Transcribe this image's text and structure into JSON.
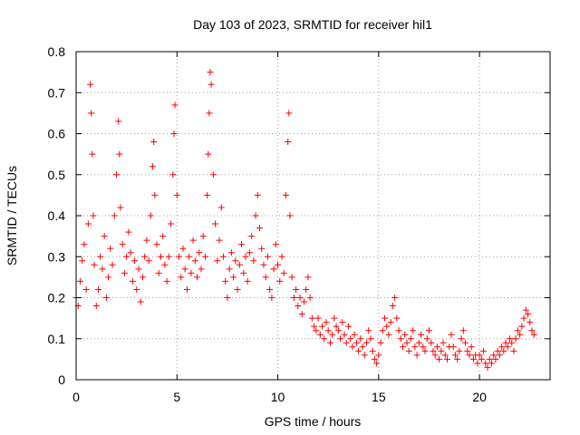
{
  "chart_data": {
    "type": "scatter",
    "title": "Day 103 of 2023, SRMTID for receiver hil1",
    "xlabel": "GPS time / hours",
    "ylabel": "SRMTID / TECUs",
    "xlim": [
      0,
      23.5
    ],
    "ylim": [
      0,
      0.8
    ],
    "xticks": [
      0,
      5,
      10,
      15,
      20
    ],
    "xtick_labels": [
      "0",
      "5",
      "10",
      "15",
      "20"
    ],
    "yticks": [
      0,
      0.1,
      0.2,
      0.3,
      0.4,
      0.5,
      0.6,
      0.7,
      0.8
    ],
    "ytick_labels": [
      "0",
      "0.1",
      "0.2",
      "0.3",
      "0.4",
      "0.5",
      "0.6",
      "0.7",
      "0.8"
    ],
    "grid": true,
    "marker": "+",
    "color": "#ff0000",
    "series": [
      {
        "name": "SRMTID",
        "points": [
          [
            0.0,
            0.2
          ],
          [
            0.1,
            0.18
          ],
          [
            0.2,
            0.24
          ],
          [
            0.3,
            0.29
          ],
          [
            0.4,
            0.33
          ],
          [
            0.5,
            0.22
          ],
          [
            0.6,
            0.38
          ],
          [
            0.7,
            0.72
          ],
          [
            0.75,
            0.65
          ],
          [
            0.8,
            0.55
          ],
          [
            0.85,
            0.4
          ],
          [
            0.9,
            0.28
          ],
          [
            1.0,
            0.18
          ],
          [
            1.1,
            0.22
          ],
          [
            1.2,
            0.3
          ],
          [
            1.3,
            0.27
          ],
          [
            1.4,
            0.35
          ],
          [
            1.5,
            0.2
          ],
          [
            1.6,
            0.25
          ],
          [
            1.7,
            0.32
          ],
          [
            1.8,
            0.28
          ],
          [
            1.9,
            0.4
          ],
          [
            2.0,
            0.5
          ],
          [
            2.1,
            0.63
          ],
          [
            2.15,
            0.55
          ],
          [
            2.2,
            0.42
          ],
          [
            2.3,
            0.33
          ],
          [
            2.4,
            0.26
          ],
          [
            2.5,
            0.3
          ],
          [
            2.6,
            0.36
          ],
          [
            2.7,
            0.31
          ],
          [
            2.8,
            0.24
          ],
          [
            2.9,
            0.29
          ],
          [
            3.0,
            0.22
          ],
          [
            3.1,
            0.27
          ],
          [
            3.2,
            0.19
          ],
          [
            3.3,
            0.25
          ],
          [
            3.4,
            0.3
          ],
          [
            3.5,
            0.34
          ],
          [
            3.6,
            0.29
          ],
          [
            3.7,
            0.4
          ],
          [
            3.8,
            0.52
          ],
          [
            3.85,
            0.58
          ],
          [
            3.9,
            0.45
          ],
          [
            4.0,
            0.33
          ],
          [
            4.1,
            0.26
          ],
          [
            4.2,
            0.3
          ],
          [
            4.3,
            0.35
          ],
          [
            4.4,
            0.28
          ],
          [
            4.5,
            0.24
          ],
          [
            4.6,
            0.3
          ],
          [
            4.7,
            0.38
          ],
          [
            4.8,
            0.5
          ],
          [
            4.85,
            0.6
          ],
          [
            4.9,
            0.67
          ],
          [
            5.0,
            0.45
          ],
          [
            5.1,
            0.3
          ],
          [
            5.2,
            0.25
          ],
          [
            5.3,
            0.32
          ],
          [
            5.4,
            0.27
          ],
          [
            5.5,
            0.22
          ],
          [
            5.6,
            0.3
          ],
          [
            5.7,
            0.26
          ],
          [
            5.8,
            0.34
          ],
          [
            5.9,
            0.29
          ],
          [
            6.0,
            0.25
          ],
          [
            6.1,
            0.31
          ],
          [
            6.2,
            0.27
          ],
          [
            6.3,
            0.35
          ],
          [
            6.4,
            0.3
          ],
          [
            6.5,
            0.45
          ],
          [
            6.55,
            0.55
          ],
          [
            6.6,
            0.65
          ],
          [
            6.65,
            0.75
          ],
          [
            6.7,
            0.72
          ],
          [
            6.8,
            0.5
          ],
          [
            6.9,
            0.38
          ],
          [
            7.0,
            0.29
          ],
          [
            7.1,
            0.34
          ],
          [
            7.2,
            0.42
          ],
          [
            7.3,
            0.3
          ],
          [
            7.4,
            0.24
          ],
          [
            7.5,
            0.2
          ],
          [
            7.6,
            0.27
          ],
          [
            7.7,
            0.31
          ],
          [
            7.8,
            0.25
          ],
          [
            7.9,
            0.29
          ],
          [
            8.0,
            0.22
          ],
          [
            8.1,
            0.28
          ],
          [
            8.2,
            0.33
          ],
          [
            8.3,
            0.26
          ],
          [
            8.4,
            0.3
          ],
          [
            8.5,
            0.24
          ],
          [
            8.6,
            0.31
          ],
          [
            8.7,
            0.35
          ],
          [
            8.8,
            0.29
          ],
          [
            8.9,
            0.4
          ],
          [
            9.0,
            0.45
          ],
          [
            9.1,
            0.37
          ],
          [
            9.2,
            0.32
          ],
          [
            9.3,
            0.28
          ],
          [
            9.4,
            0.25
          ],
          [
            9.5,
            0.3
          ],
          [
            9.6,
            0.22
          ],
          [
            9.7,
            0.2
          ],
          [
            9.8,
            0.27
          ],
          [
            9.9,
            0.33
          ],
          [
            10.0,
            0.28
          ],
          [
            10.1,
            0.24
          ],
          [
            10.2,
            0.3
          ],
          [
            10.3,
            0.26
          ],
          [
            10.4,
            0.45
          ],
          [
            10.5,
            0.58
          ],
          [
            10.55,
            0.65
          ],
          [
            10.6,
            0.4
          ],
          [
            10.7,
            0.25
          ],
          [
            10.8,
            0.2
          ],
          [
            10.9,
            0.22
          ],
          [
            11.0,
            0.18
          ],
          [
            11.1,
            0.2
          ],
          [
            11.2,
            0.16
          ],
          [
            11.3,
            0.19
          ],
          [
            11.4,
            0.22
          ],
          [
            11.5,
            0.25
          ],
          [
            11.6,
            0.2
          ],
          [
            11.7,
            0.15
          ],
          [
            11.8,
            0.13
          ],
          [
            11.9,
            0.12
          ],
          [
            12.0,
            0.15
          ],
          [
            12.1,
            0.11
          ],
          [
            12.2,
            0.13
          ],
          [
            12.3,
            0.1
          ],
          [
            12.4,
            0.14
          ],
          [
            12.5,
            0.12
          ],
          [
            12.6,
            0.09
          ],
          [
            12.7,
            0.11
          ],
          [
            12.8,
            0.15
          ],
          [
            12.9,
            0.13
          ],
          [
            13.0,
            0.12
          ],
          [
            13.1,
            0.1
          ],
          [
            13.2,
            0.14
          ],
          [
            13.3,
            0.11
          ],
          [
            13.4,
            0.09
          ],
          [
            13.5,
            0.13
          ],
          [
            13.6,
            0.1
          ],
          [
            13.7,
            0.08
          ],
          [
            13.8,
            0.11
          ],
          [
            13.9,
            0.09
          ],
          [
            14.0,
            0.07
          ],
          [
            14.1,
            0.1
          ],
          [
            14.2,
            0.08
          ],
          [
            14.3,
            0.06
          ],
          [
            14.4,
            0.09
          ],
          [
            14.5,
            0.12
          ],
          [
            14.6,
            0.1
          ],
          [
            14.7,
            0.07
          ],
          [
            14.8,
            0.05
          ],
          [
            14.9,
            0.04
          ],
          [
            15.0,
            0.06
          ],
          [
            15.1,
            0.09
          ],
          [
            15.2,
            0.12
          ],
          [
            15.3,
            0.15
          ],
          [
            15.4,
            0.13
          ],
          [
            15.5,
            0.11
          ],
          [
            15.6,
            0.14
          ],
          [
            15.7,
            0.18
          ],
          [
            15.8,
            0.2
          ],
          [
            15.9,
            0.15
          ],
          [
            16.0,
            0.12
          ],
          [
            16.1,
            0.1
          ],
          [
            16.2,
            0.08
          ],
          [
            16.3,
            0.11
          ],
          [
            16.4,
            0.09
          ],
          [
            16.5,
            0.07
          ],
          [
            16.6,
            0.1
          ],
          [
            16.7,
            0.12
          ],
          [
            16.8,
            0.08
          ],
          [
            16.9,
            0.06
          ],
          [
            17.0,
            0.09
          ],
          [
            17.1,
            0.11
          ],
          [
            17.2,
            0.08
          ],
          [
            17.3,
            0.07
          ],
          [
            17.4,
            0.1
          ],
          [
            17.5,
            0.12
          ],
          [
            17.6,
            0.09
          ],
          [
            17.7,
            0.07
          ],
          [
            17.8,
            0.06
          ],
          [
            17.9,
            0.08
          ],
          [
            18.0,
            0.05
          ],
          [
            18.1,
            0.07
          ],
          [
            18.2,
            0.09
          ],
          [
            18.3,
            0.06
          ],
          [
            18.4,
            0.05
          ],
          [
            18.5,
            0.08
          ],
          [
            18.6,
            0.11
          ],
          [
            18.7,
            0.08
          ],
          [
            18.8,
            0.06
          ],
          [
            18.9,
            0.05
          ],
          [
            19.0,
            0.07
          ],
          [
            19.1,
            0.1
          ],
          [
            19.2,
            0.12
          ],
          [
            19.3,
            0.09
          ],
          [
            19.4,
            0.07
          ],
          [
            19.5,
            0.06
          ],
          [
            19.6,
            0.08
          ],
          [
            19.7,
            0.05
          ],
          [
            19.8,
            0.06
          ],
          [
            19.9,
            0.04
          ],
          [
            20.0,
            0.06
          ],
          [
            20.1,
            0.05
          ],
          [
            20.2,
            0.07
          ],
          [
            20.3,
            0.04
          ],
          [
            20.4,
            0.03
          ],
          [
            20.5,
            0.05
          ],
          [
            20.6,
            0.04
          ],
          [
            20.7,
            0.06
          ],
          [
            20.8,
            0.05
          ],
          [
            20.9,
            0.07
          ],
          [
            21.0,
            0.06
          ],
          [
            21.1,
            0.08
          ],
          [
            21.2,
            0.07
          ],
          [
            21.3,
            0.09
          ],
          [
            21.4,
            0.08
          ],
          [
            21.5,
            0.1
          ],
          [
            21.6,
            0.09
          ],
          [
            21.7,
            0.07
          ],
          [
            21.8,
            0.1
          ],
          [
            21.9,
            0.12
          ],
          [
            22.0,
            0.11
          ],
          [
            22.1,
            0.13
          ],
          [
            22.2,
            0.15
          ],
          [
            22.3,
            0.17
          ],
          [
            22.4,
            0.16
          ],
          [
            22.5,
            0.14
          ],
          [
            22.6,
            0.12
          ],
          [
            22.7,
            0.11
          ]
        ]
      }
    ]
  }
}
